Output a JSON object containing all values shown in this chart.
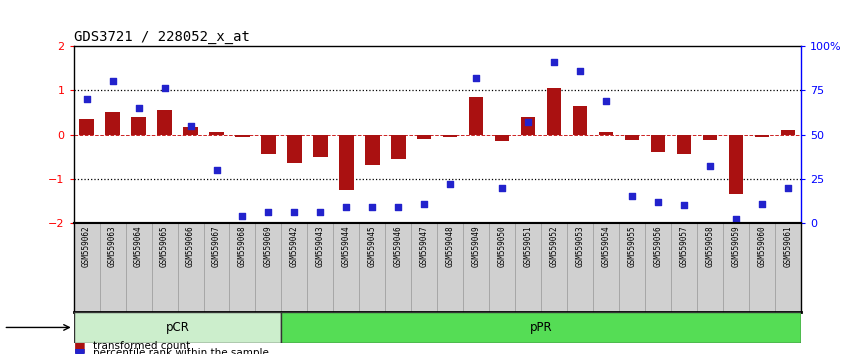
{
  "title": "GDS3721 / 228052_x_at",
  "samples": [
    "GSM559062",
    "GSM559063",
    "GSM559064",
    "GSM559065",
    "GSM559066",
    "GSM559067",
    "GSM559068",
    "GSM559069",
    "GSM559042",
    "GSM559043",
    "GSM559044",
    "GSM559045",
    "GSM559046",
    "GSM559047",
    "GSM559048",
    "GSM559049",
    "GSM559050",
    "GSM559051",
    "GSM559052",
    "GSM559053",
    "GSM559054",
    "GSM559055",
    "GSM559056",
    "GSM559057",
    "GSM559058",
    "GSM559059",
    "GSM559060",
    "GSM559061"
  ],
  "bar_values": [
    0.35,
    0.5,
    0.4,
    0.55,
    0.18,
    0.05,
    -0.05,
    -0.45,
    -0.65,
    -0.5,
    -1.25,
    -0.7,
    -0.55,
    -0.1,
    -0.05,
    0.85,
    -0.15,
    0.4,
    1.05,
    0.65,
    0.05,
    -0.12,
    -0.4,
    -0.45,
    -0.12,
    -1.35,
    -0.05,
    0.1
  ],
  "dot_pct": [
    70,
    80,
    65,
    76,
    55,
    30,
    4,
    6,
    6,
    6,
    9,
    9,
    9,
    11,
    22,
    82,
    20,
    57,
    91,
    86,
    69,
    15,
    12,
    10,
    32,
    2,
    11,
    20
  ],
  "pcr_count": 8,
  "ppr_count": 20,
  "bar_color": "#aa1111",
  "dot_color": "#2222cc",
  "ylim": [
    -2.0,
    2.0
  ],
  "y_ticks": [
    -2,
    -1,
    0,
    1,
    2
  ],
  "y2_ticks": [
    0,
    25,
    50,
    75,
    100
  ],
  "background_color": "#ffffff",
  "pcr_color": "#cceecc",
  "ppr_color": "#55dd55",
  "label_bar": "transformed count",
  "label_dot": "percentile rank within the sample"
}
